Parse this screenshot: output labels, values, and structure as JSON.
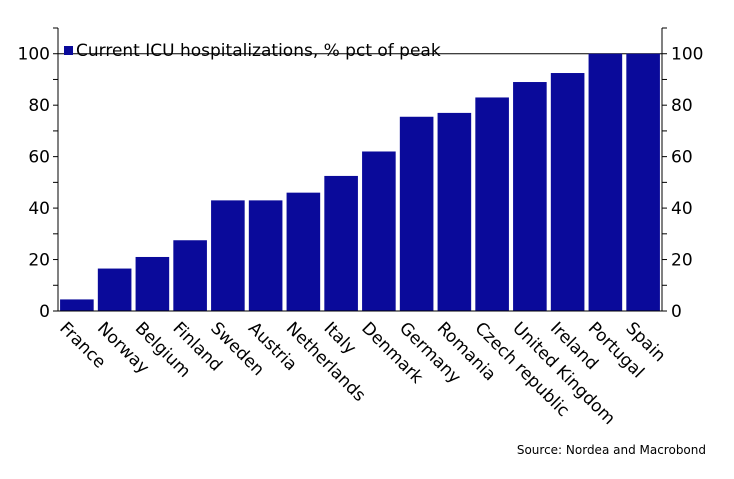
{
  "chart_data": {
    "type": "bar",
    "series": [
      {
        "name": "Current ICU hospitalizations, % pct of peak",
        "color": "#0a0a9a",
        "values": [
          4.5,
          16.5,
          21,
          27.5,
          43,
          43,
          46,
          52.5,
          62,
          75.5,
          77,
          83,
          89,
          92.5,
          100,
          100
        ]
      }
    ],
    "categories": [
      "France",
      "Norway",
      "Belgium",
      "Finland",
      "Sweden",
      "Austria",
      "Netherlands",
      "Italy",
      "Denmark",
      "Germany",
      "Romania",
      "Czech republic",
      "United Kingdom",
      "Ireland",
      "Portugal",
      "Spain"
    ],
    "ylim": [
      0,
      110
    ],
    "yticks": [
      0,
      20,
      40,
      60,
      80,
      100
    ],
    "ytick_labels": [
      "0",
      "20",
      "40",
      "60",
      "80",
      "100"
    ],
    "left_axis": true,
    "right_axis": true,
    "reference_line": 100,
    "legend_placement": "top-left",
    "grid": false,
    "source": "Source: Nordea and Macrobond"
  }
}
